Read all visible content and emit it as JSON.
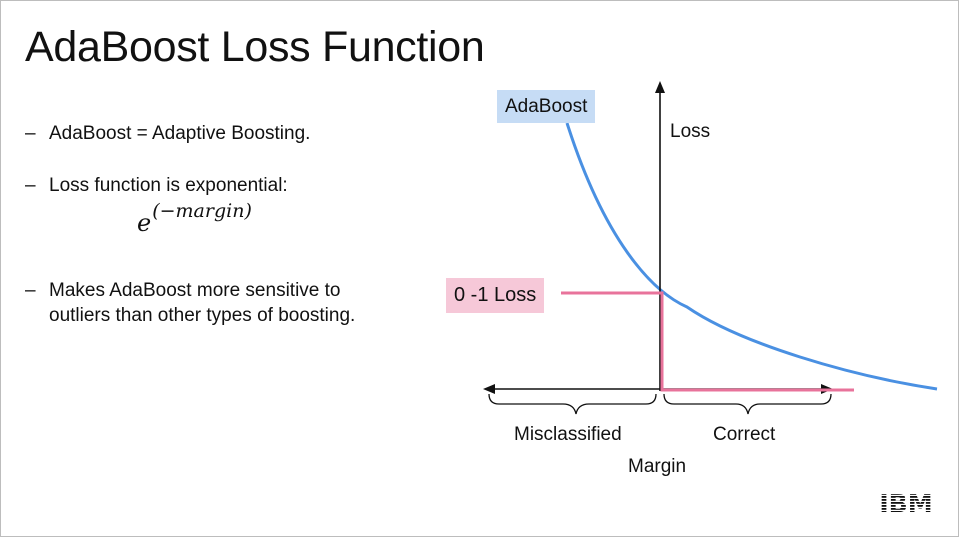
{
  "title": "AdaBoost Loss Function",
  "bullets": [
    {
      "dash": "–",
      "lines": [
        "AdaBoost = Adaptive Boosting."
      ]
    },
    {
      "dash": "–",
      "lines": [
        "Loss function is exponential:"
      ]
    },
    {
      "dash": "–",
      "lines": [
        "Makes AdaBoost more sensitive to",
        "outliers than other types of boosting."
      ]
    }
  ],
  "formula": {
    "base": "e",
    "exponent": "(−margin)"
  },
  "diagram": {
    "adaboost_label": "AdaBoost",
    "zero_one_label": "0 -1 Loss",
    "y_axis_label": "Loss",
    "x_axis_label": "Margin",
    "left_region_label": "Misclassified",
    "right_region_label": "Correct",
    "colors": {
      "adaboost_curve": "#4a90e2",
      "zero_one_loss": "#e8739b",
      "adaboost_tag_bg": "#c6dcf5",
      "zero_one_tag_bg": "#f6c8d8",
      "axes": "#111111"
    }
  },
  "logo": {
    "text": "IBM",
    "icon": "ibm-logo"
  }
}
